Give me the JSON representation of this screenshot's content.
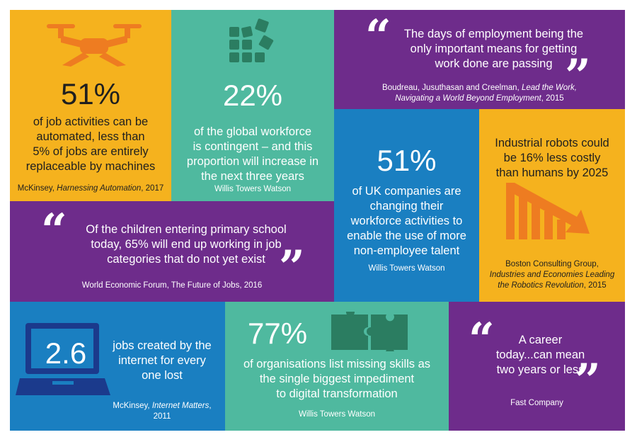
{
  "colors": {
    "yellow": "#f5b21e",
    "teal": "#4fb99f",
    "purple": "#6e2c8b",
    "blue": "#1a7fc1",
    "navy": "#1b3a8c",
    "orange": "#ee7c21"
  },
  "tile_drone": {
    "icon": "drone-icon",
    "stat": "51%",
    "text": [
      "of job activities can be",
      "automated, less than",
      "5% of jobs are entirely",
      "replaceable by machines"
    ],
    "source_plain": "McKinsey, ",
    "source_italic": "Harnessing Automation",
    "source_end": ", 2017"
  },
  "tile_blocks": {
    "icon": "blocks-icon",
    "stat": "22%",
    "text": [
      "of the global workforce",
      "is contingent – and this",
      "proportion will increase in",
      "the next three years"
    ],
    "source": "Willis Towers Watson"
  },
  "tile_quote_work": {
    "quote": [
      "The days of employment being the",
      "only important means for getting",
      "work done are passing"
    ],
    "source_line1_plain": "Boudreau, Jusuthasan and Creelman, ",
    "source_line1_italic": "Lead the Work,",
    "source_line2_italic": "Navigating a World Beyond Employment",
    "source_line2_end": ", 2015"
  },
  "tile_uk": {
    "stat": "51%",
    "text": [
      "of UK companies are",
      "changing their",
      "workforce activities to",
      "enable the use of more",
      "non-employee talent"
    ],
    "source": "Willis Towers Watson"
  },
  "tile_robots": {
    "icon": "declining-chart-icon",
    "text": [
      "Industrial robots could",
      "be 16% less costly",
      "than humans by 2025"
    ],
    "source_line1": "Boston Consulting Group,",
    "source_line2_italic": "Industries and Economies Leading",
    "source_line3_italic": "the Robotics Revolution",
    "source_line3_end": ", 2015"
  },
  "tile_children": {
    "quote": [
      "Of the children entering primary school",
      "today, 65% will end up working in job",
      "categories that do not yet exist"
    ],
    "source": "World Economic Forum, The Future of Jobs, 2016"
  },
  "tile_internet": {
    "icon": "laptop-icon",
    "stat": "2.6",
    "text": [
      "jobs created by the",
      "internet for every",
      "one lost"
    ],
    "source_line1_plain": "McKinsey, ",
    "source_line1_italic": "Internet Matters",
    "source_line1_end": ",",
    "source_line2": "2011"
  },
  "tile_skills": {
    "icon": "puzzle-icon",
    "stat": "77%",
    "text": [
      "of organisations list missing skills as",
      "the single biggest impediment",
      "to digital transformation"
    ],
    "source": "Willis Towers Watson"
  },
  "tile_career": {
    "quote": [
      "A career",
      "today...can mean",
      "two years or less"
    ],
    "source": "Fast Company"
  },
  "quote_open": "“",
  "quote_close": "”"
}
